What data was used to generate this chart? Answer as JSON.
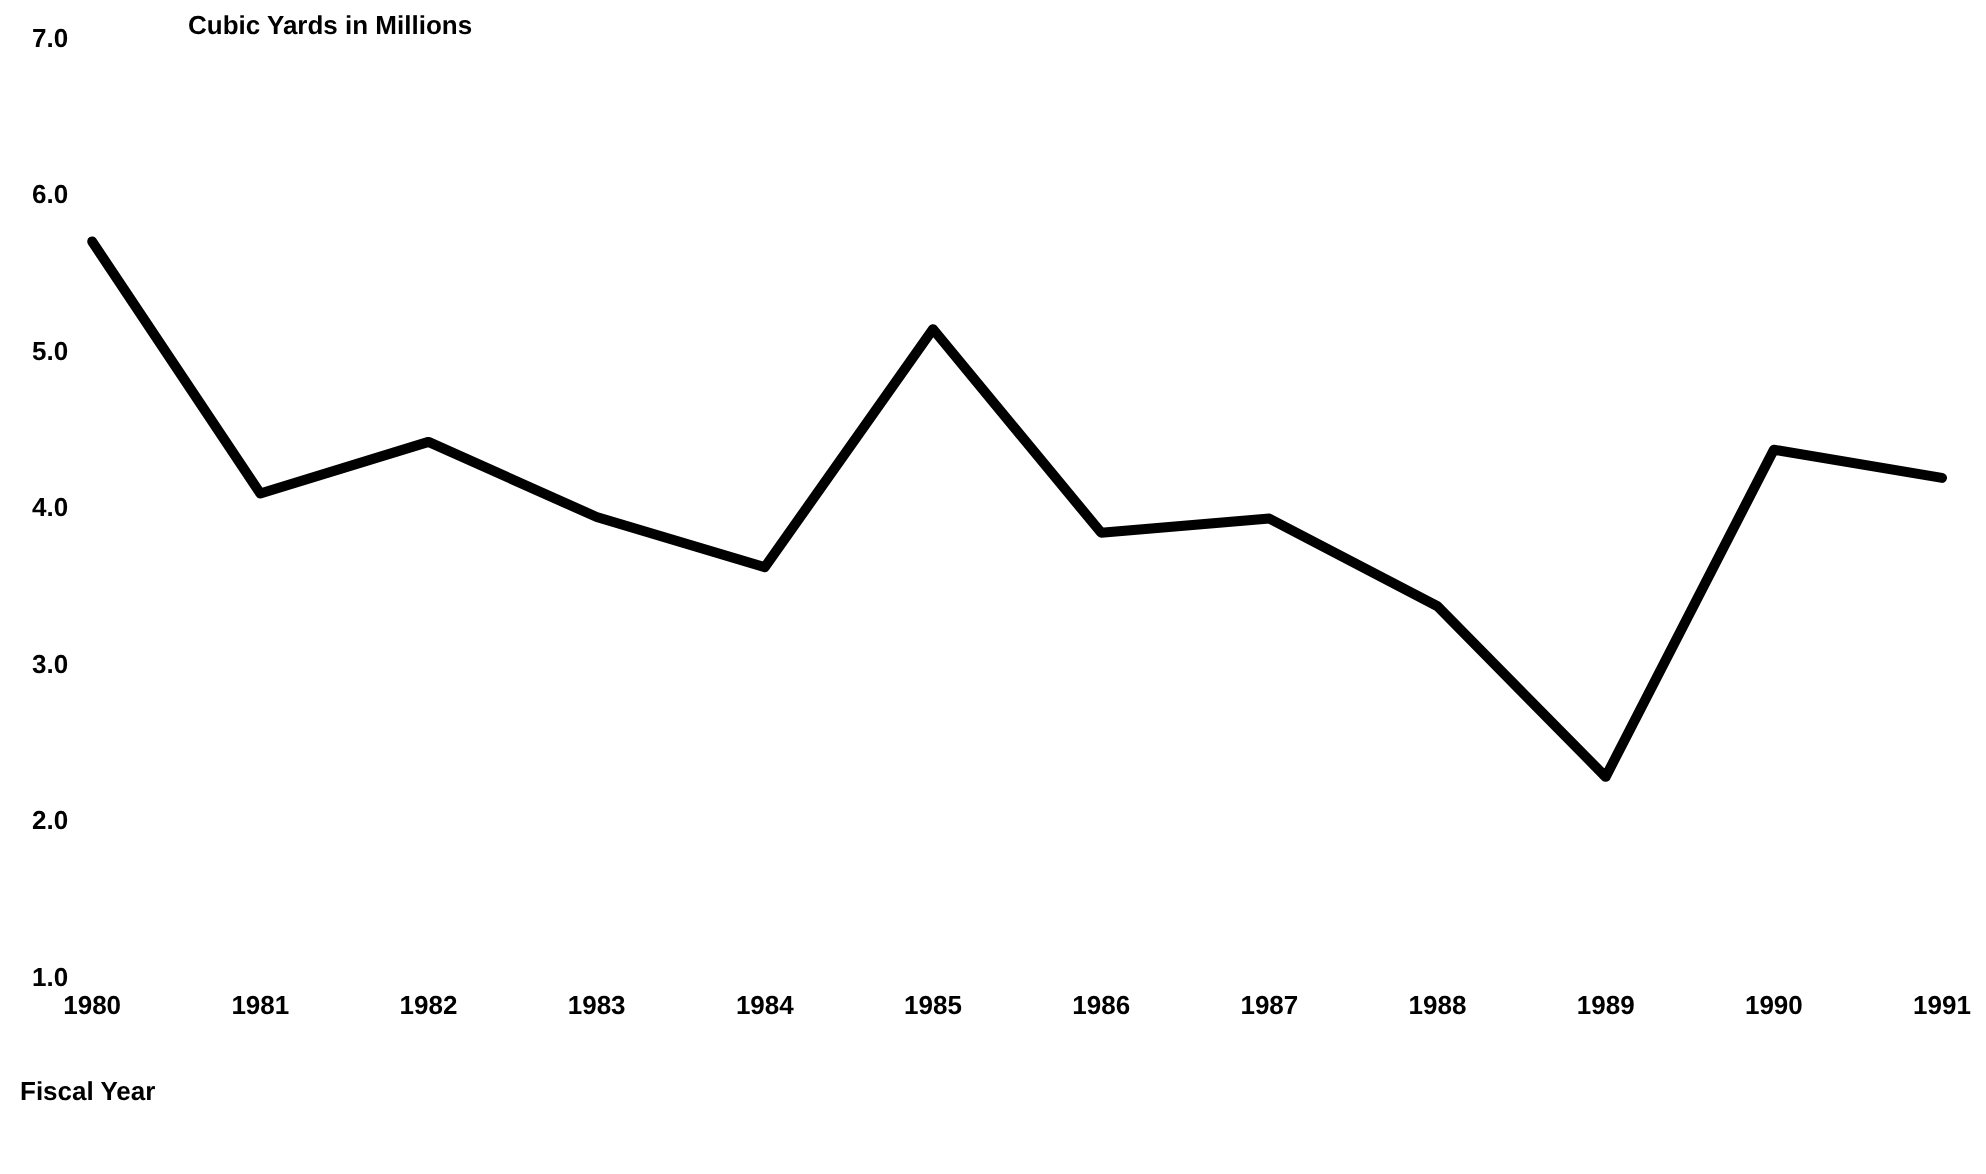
{
  "chart_data": {
    "type": "line",
    "ylabel": "Cubic Yards in Millions",
    "xlabel": "Fiscal Year",
    "categories": [
      "1980",
      "1981",
      "1982",
      "1983",
      "1984",
      "1985",
      "1986",
      "1987",
      "1988",
      "1989",
      "1990",
      "1991"
    ],
    "series": [
      {
        "color": "#000000",
        "values": [
          5.71,
          4.1,
          4.43,
          3.95,
          3.63,
          5.15,
          3.85,
          3.94,
          3.38,
          2.29,
          4.38,
          4.2
        ]
      }
    ],
    "ylim": [
      1,
      7
    ],
    "yticks": [
      {
        "value": 1,
        "label": "1.0"
      },
      {
        "value": 2,
        "label": "2.0"
      },
      {
        "value": 3,
        "label": "3.0"
      },
      {
        "value": 4,
        "label": "4.0"
      },
      {
        "value": 5,
        "label": "5.0"
      },
      {
        "value": 6,
        "label": "6.0"
      },
      {
        "value": 7,
        "label": "7.0"
      }
    ],
    "grid": false,
    "legend": false,
    "marker": "none",
    "line_style": "solid"
  }
}
